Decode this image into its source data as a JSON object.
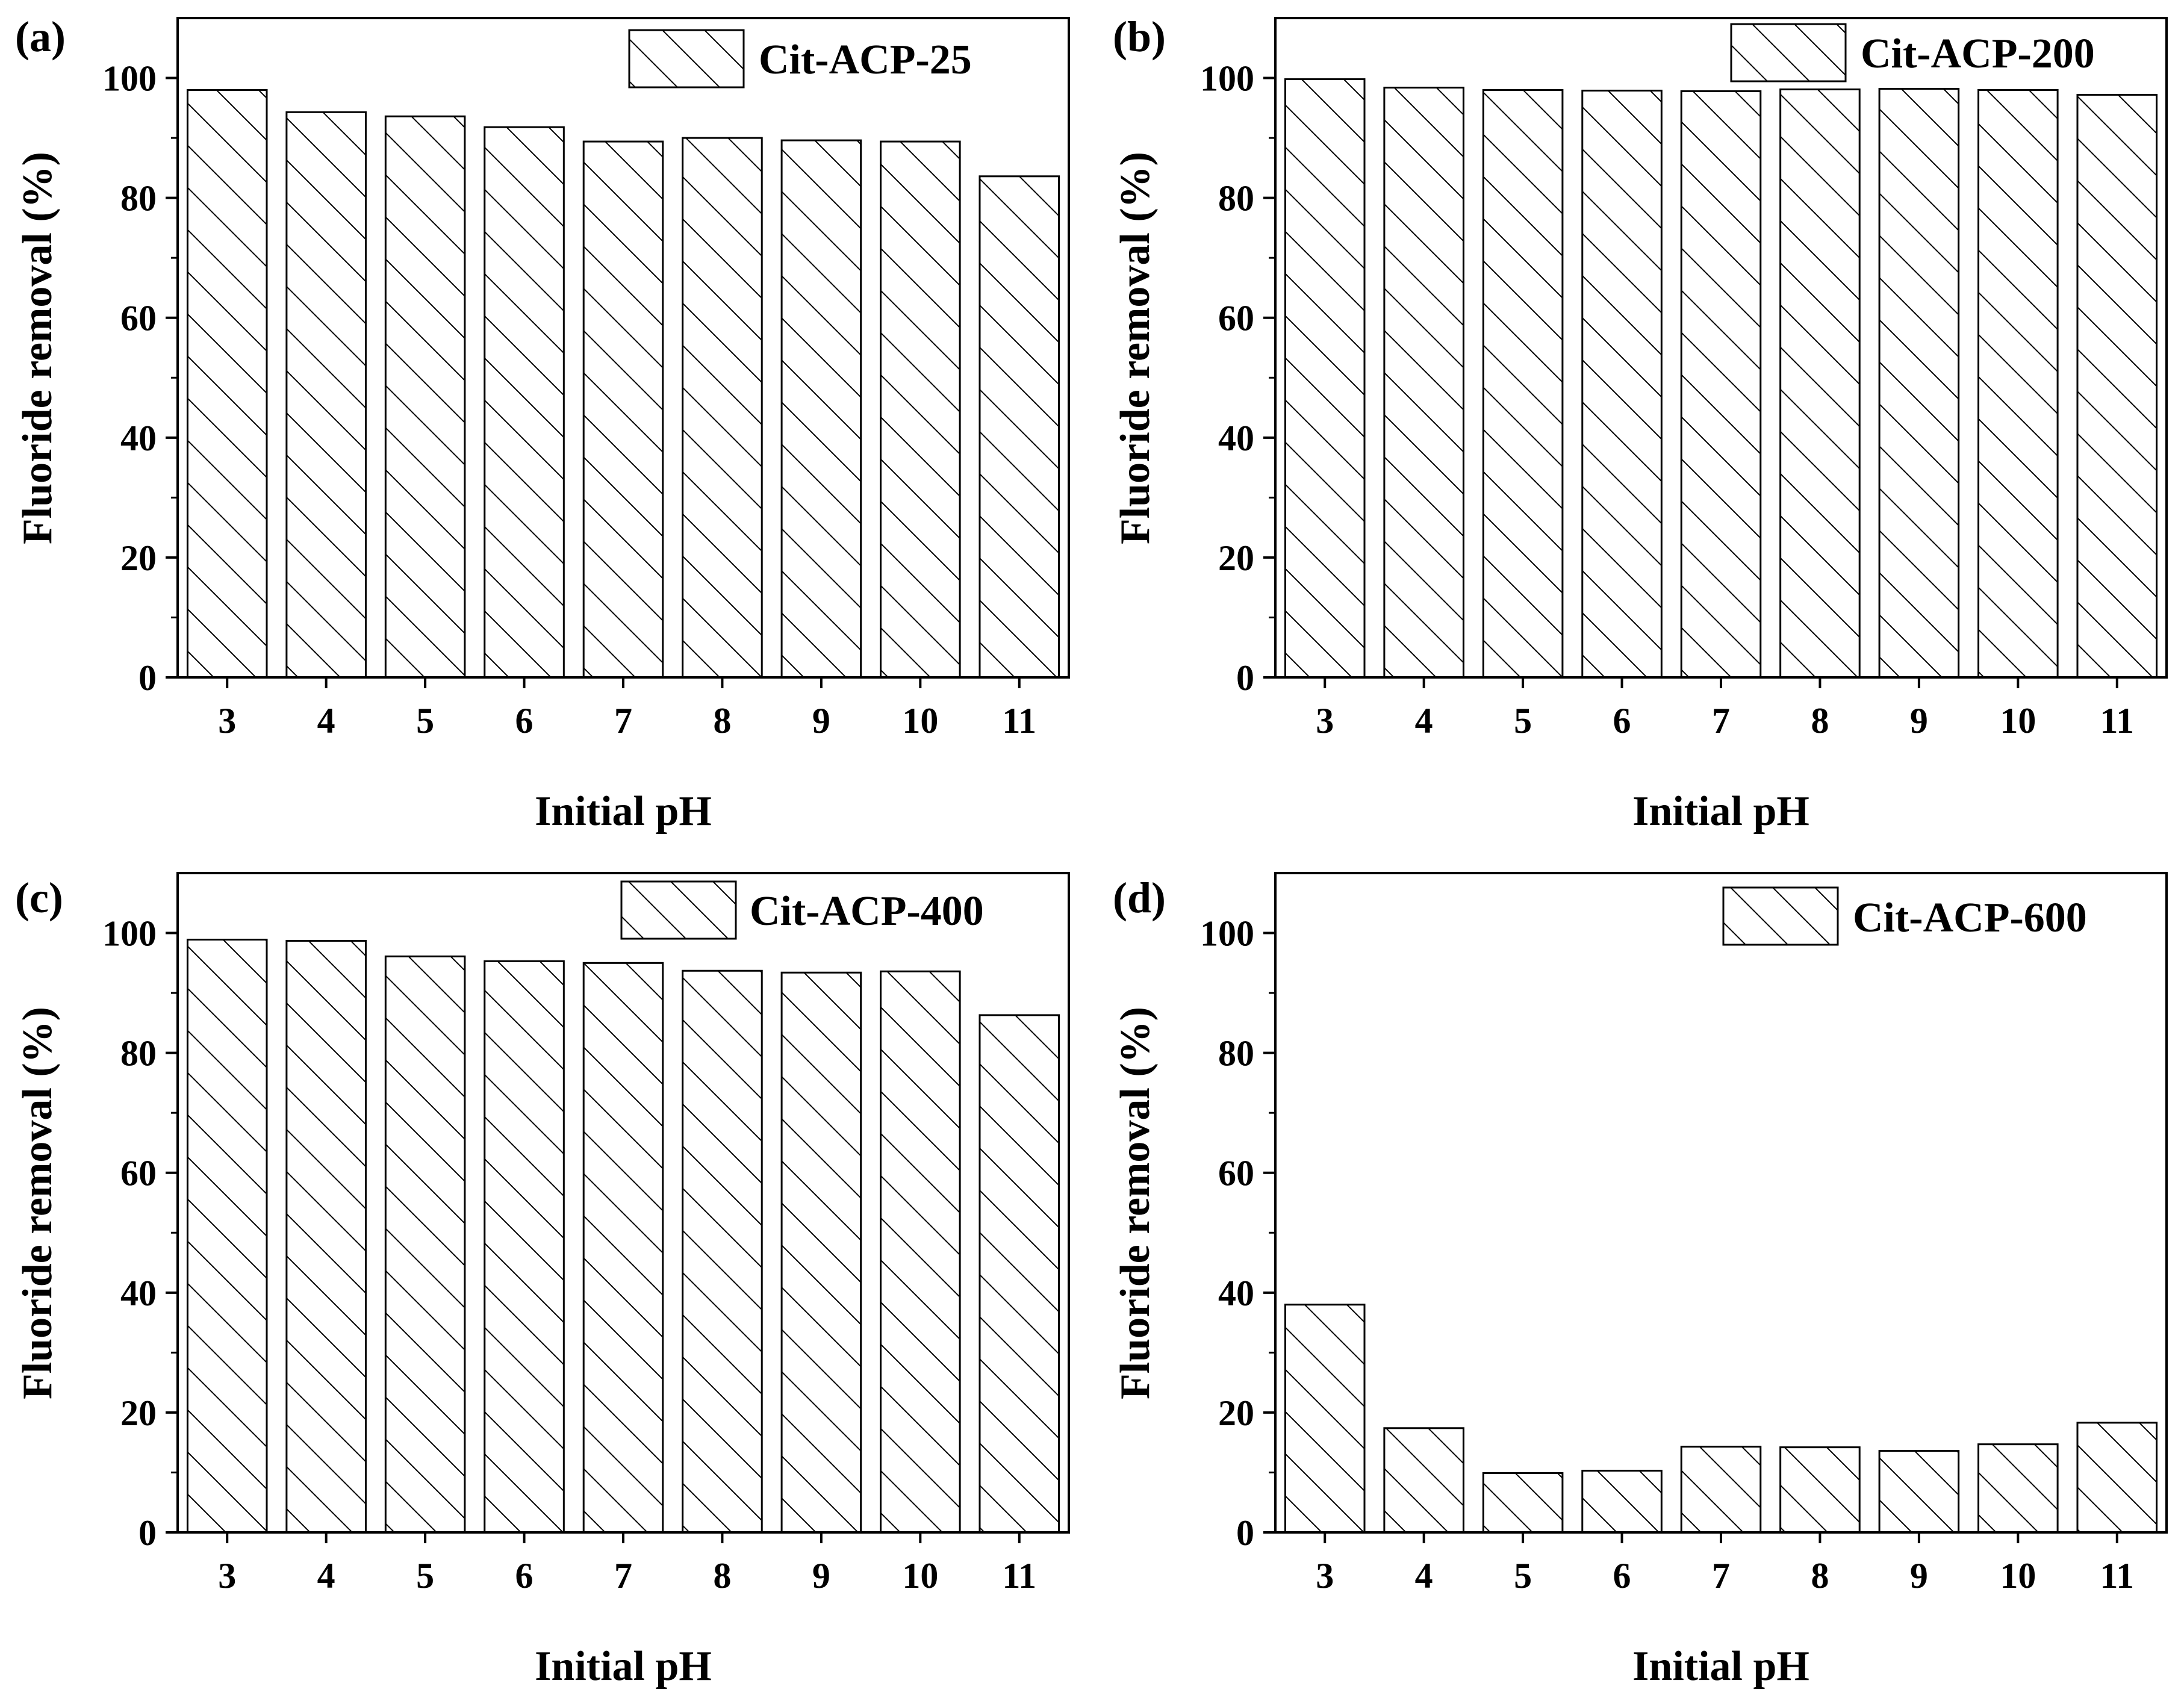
{
  "chart_data": [
    {
      "type": "bar",
      "panel_label": "(a)",
      "legend": "Cit-ACP-25",
      "categories": [
        "3",
        "4",
        "5",
        "6",
        "7",
        "8",
        "9",
        "10",
        "11"
      ],
      "values": [
        98.0,
        94.3,
        93.6,
        91.8,
        89.4,
        90.0,
        89.6,
        89.4,
        83.6
      ],
      "xlabel": "Initial pH",
      "ylabel": "Fluoride removal (%)",
      "ylim": [
        0,
        110
      ],
      "yticks": [
        "0",
        "20",
        "40",
        "60",
        "80",
        "100"
      ]
    },
    {
      "type": "bar",
      "panel_label": "(b)",
      "legend": "Cit-ACP-200",
      "categories": [
        "3",
        "4",
        "5",
        "6",
        "7",
        "8",
        "9",
        "10",
        "11"
      ],
      "values": [
        99.8,
        98.4,
        98.0,
        97.9,
        97.8,
        98.1,
        98.2,
        98.0,
        97.2
      ],
      "xlabel": "Initial pH",
      "ylabel": "Fluoride removal (%)",
      "ylim": [
        0,
        110
      ],
      "yticks": [
        "0",
        "20",
        "40",
        "60",
        "80",
        "100"
      ]
    },
    {
      "type": "bar",
      "panel_label": "(c)",
      "legend": "Cit-ACP-400",
      "categories": [
        "3",
        "4",
        "5",
        "6",
        "7",
        "8",
        "9",
        "10",
        "11"
      ],
      "values": [
        98.9,
        98.7,
        96.1,
        95.3,
        95.0,
        93.7,
        93.4,
        93.6,
        86.3
      ],
      "xlabel": "Initial pH",
      "ylabel": "Fluoride removal (%)",
      "ylim": [
        0,
        110
      ],
      "yticks": [
        "0",
        "20",
        "40",
        "60",
        "80",
        "100"
      ]
    },
    {
      "type": "bar",
      "panel_label": "(d)",
      "legend": "Cit-ACP-600",
      "categories": [
        "3",
        "4",
        "5",
        "6",
        "7",
        "8",
        "9",
        "10",
        "11"
      ],
      "values": [
        38.0,
        17.4,
        9.9,
        10.3,
        14.3,
        14.2,
        13.6,
        14.7,
        18.3
      ],
      "xlabel": "Initial pH",
      "ylabel": "Fluoride removal (%)",
      "ylim": [
        0,
        110
      ],
      "yticks": [
        "0",
        "20",
        "40",
        "60",
        "80",
        "100"
      ]
    }
  ],
  "colors": {
    "ink": "#000000",
    "fill": "#ffffff"
  },
  "pattern": "diagonal-hatch"
}
